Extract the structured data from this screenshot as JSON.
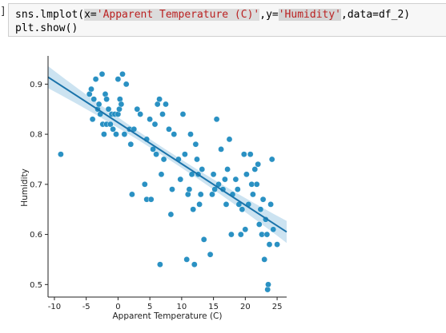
{
  "notebook": {
    "prompt_marker": "]",
    "code": {
      "line1": {
        "pre": "sns.lmplot(",
        "x_kw": "x=",
        "x_str": "'Apparent Temperature (C)'",
        "sep1": ",",
        "y_kw": "y=",
        "y_str": "'Humidity'",
        "sep2": ",",
        "data_kw": "data=",
        "data_val": "df_2",
        "close": ")"
      },
      "line2": "plt.show()"
    }
  },
  "colors": {
    "point": "#1f8bc0",
    "regression_line": "#1a73aa",
    "ci_band": "#bfdcee",
    "axis": "#222222"
  },
  "chart_data": {
    "type": "scatter",
    "xlabel": "Apparent Temperature (C)",
    "ylabel": "Humidity",
    "xlim": [
      -11,
      26.5
    ],
    "ylim": [
      0.475,
      0.95
    ],
    "xticks": [
      -10,
      -5,
      0,
      5,
      10,
      15,
      20,
      25
    ],
    "yticks": [
      0.5,
      0.6,
      0.7,
      0.8,
      0.9
    ],
    "grid": false,
    "points": [
      [
        -9,
        0.76
      ],
      [
        -4.5,
        0.88
      ],
      [
        -4.2,
        0.89
      ],
      [
        -4.0,
        0.83
      ],
      [
        -3.8,
        0.87
      ],
      [
        -3.5,
        0.91
      ],
      [
        -3.2,
        0.85
      ],
      [
        -3.0,
        0.86
      ],
      [
        -2.8,
        0.84
      ],
      [
        -2.5,
        0.92
      ],
      [
        -2.4,
        0.82
      ],
      [
        -2.2,
        0.8
      ],
      [
        -2.0,
        0.88
      ],
      [
        -1.8,
        0.87
      ],
      [
        -1.8,
        0.82
      ],
      [
        -1.5,
        0.85
      ],
      [
        -1.2,
        0.82
      ],
      [
        -1.0,
        0.84
      ],
      [
        -0.8,
        0.81
      ],
      [
        -0.5,
        0.84
      ],
      [
        -0.3,
        0.8
      ],
      [
        0.0,
        0.91
      ],
      [
        0.0,
        0.84
      ],
      [
        0.2,
        0.85
      ],
      [
        0.3,
        0.87
      ],
      [
        0.5,
        0.86
      ],
      [
        0.7,
        0.92
      ],
      [
        1.0,
        0.8
      ],
      [
        1.3,
        0.9
      ],
      [
        1.8,
        0.81
      ],
      [
        2.0,
        0.78
      ],
      [
        2.2,
        0.68
      ],
      [
        2.5,
        0.81
      ],
      [
        3.0,
        0.85
      ],
      [
        3.5,
        0.84
      ],
      [
        4.2,
        0.7
      ],
      [
        4.5,
        0.67
      ],
      [
        4.5,
        0.79
      ],
      [
        5.0,
        0.83
      ],
      [
        5.2,
        0.67
      ],
      [
        5.5,
        0.77
      ],
      [
        5.8,
        0.82
      ],
      [
        6.0,
        0.76
      ],
      [
        6.2,
        0.86
      ],
      [
        6.5,
        0.87
      ],
      [
        6.6,
        0.54
      ],
      [
        6.8,
        0.72
      ],
      [
        7.0,
        0.84
      ],
      [
        7.2,
        0.75
      ],
      [
        7.5,
        0.86
      ],
      [
        8.0,
        0.81
      ],
      [
        8.3,
        0.64
      ],
      [
        8.5,
        0.69
      ],
      [
        8.8,
        0.8
      ],
      [
        9.5,
        0.75
      ],
      [
        9.8,
        0.71
      ],
      [
        10.2,
        0.84
      ],
      [
        10.5,
        0.76
      ],
      [
        10.8,
        0.55
      ],
      [
        11.0,
        0.68
      ],
      [
        11.2,
        0.69
      ],
      [
        11.4,
        0.8
      ],
      [
        11.6,
        0.72
      ],
      [
        11.8,
        0.65
      ],
      [
        12.0,
        0.54
      ],
      [
        12.2,
        0.78
      ],
      [
        12.4,
        0.75
      ],
      [
        12.6,
        0.72
      ],
      [
        12.8,
        0.66
      ],
      [
        13.0,
        0.68
      ],
      [
        13.2,
        0.73
      ],
      [
        13.5,
        0.59
      ],
      [
        14.5,
        0.56
      ],
      [
        14.8,
        0.68
      ],
      [
        15.0,
        0.72
      ],
      [
        15.2,
        0.69
      ],
      [
        15.5,
        0.83
      ],
      [
        15.8,
        0.7
      ],
      [
        16.2,
        0.77
      ],
      [
        16.5,
        0.69
      ],
      [
        16.8,
        0.71
      ],
      [
        17.0,
        0.66
      ],
      [
        17.2,
        0.73
      ],
      [
        17.5,
        0.79
      ],
      [
        17.8,
        0.6
      ],
      [
        18.0,
        0.68
      ],
      [
        18.5,
        0.71
      ],
      [
        18.8,
        0.69
      ],
      [
        19.0,
        0.66
      ],
      [
        19.3,
        0.6
      ],
      [
        19.5,
        0.65
      ],
      [
        19.8,
        0.76
      ],
      [
        20.0,
        0.61
      ],
      [
        20.2,
        0.72
      ],
      [
        20.5,
        0.66
      ],
      [
        20.8,
        0.76
      ],
      [
        21.0,
        0.7
      ],
      [
        21.2,
        0.68
      ],
      [
        21.5,
        0.73
      ],
      [
        21.8,
        0.7
      ],
      [
        22.0,
        0.74
      ],
      [
        22.2,
        0.62
      ],
      [
        22.4,
        0.65
      ],
      [
        22.6,
        0.6
      ],
      [
        22.8,
        0.67
      ],
      [
        23.0,
        0.55
      ],
      [
        23.2,
        0.63
      ],
      [
        23.4,
        0.6
      ],
      [
        23.5,
        0.49
      ],
      [
        23.6,
        0.5
      ],
      [
        23.8,
        0.58
      ],
      [
        24.0,
        0.66
      ],
      [
        24.2,
        0.75
      ],
      [
        24.4,
        0.61
      ],
      [
        25.0,
        0.58
      ]
    ],
    "regression": {
      "x": [
        -11,
        26.5
      ],
      "y": [
        0.914,
        0.605
      ],
      "ci_halfwidth_edge": 0.022,
      "ci_halfwidth_center": 0.008
    }
  }
}
